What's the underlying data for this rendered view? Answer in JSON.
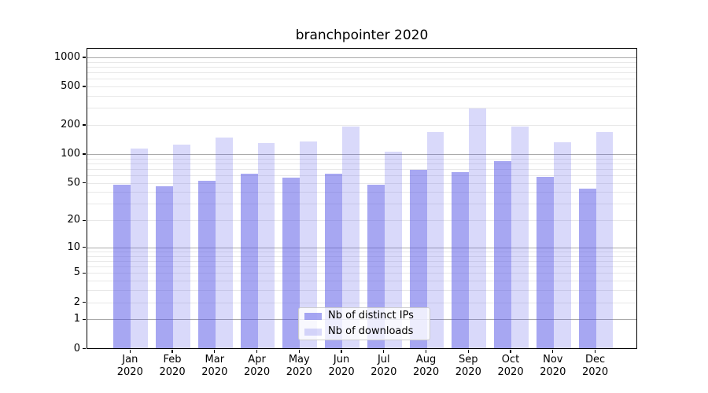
{
  "chart_data": {
    "type": "bar",
    "title": "branchpointer 2020",
    "categories": [
      "Jan 2020",
      "Feb 2020",
      "Mar 2020",
      "Apr 2020",
      "May 2020",
      "Jun 2020",
      "Jul 2020",
      "Aug 2020",
      "Sep 2020",
      "Oct 2020",
      "Nov 2020",
      "Dec 2020"
    ],
    "series": [
      {
        "name": "Nb of distinct IPs",
        "color": "rgba(80,80,230,0.5)",
        "values": [
          47,
          45,
          52,
          61,
          56,
          61,
          47,
          67,
          64,
          83,
          57,
          43
        ]
      },
      {
        "name": "Nb of downloads",
        "color": "rgba(80,80,230,0.22)",
        "values": [
          112,
          123,
          146,
          127,
          133,
          190,
          104,
          167,
          290,
          190,
          130,
          167
        ]
      }
    ],
    "xlabel": "",
    "ylabel": "",
    "yscale": "log1p",
    "yticks": [
      1000,
      500,
      200,
      100,
      50,
      20,
      10,
      5,
      2,
      1,
      0
    ],
    "ylim": [
      0,
      1250
    ],
    "grid": true,
    "legend_position": "lower center",
    "colors": {
      "grid_major": "#aaaaaa",
      "grid_minor": "#e8e8e8",
      "axis": "#000000",
      "background": "#ffffff"
    }
  }
}
